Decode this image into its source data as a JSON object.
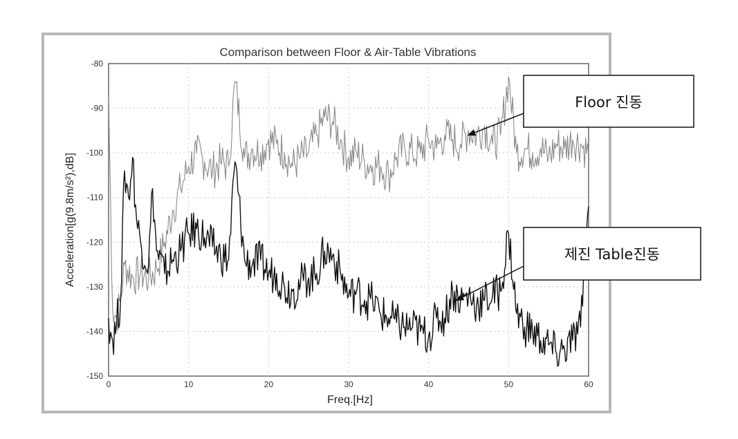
{
  "chart_data": {
    "type": "line",
    "title": "Comparison between Floor & Air-Table Vibrations",
    "xlabel": "Freq.[Hz]",
    "ylabel": "Acceleration[g(9.8m/s²),dB]",
    "xlim": [
      0,
      60
    ],
    "ylim": [
      -150,
      -80
    ],
    "x_ticks": [
      "0",
      "10",
      "20",
      "30",
      "40",
      "50",
      "60"
    ],
    "y_ticks": [
      "-150",
      "-140",
      "-130",
      "-120",
      "-110",
      "-100",
      "-90",
      "-80"
    ],
    "grid": true,
    "series": [
      {
        "name": "Floor 진동",
        "color": "#8a8a8a",
        "x": [
          0,
          0.5,
          1,
          1.5,
          2,
          3,
          4,
          5,
          6,
          7,
          8,
          9,
          10,
          11,
          12,
          13,
          14,
          15,
          15.8,
          17,
          18,
          19,
          20,
          21,
          22,
          23,
          24,
          25,
          26,
          27,
          28,
          29,
          30,
          31,
          32,
          33,
          34,
          35,
          36,
          37,
          38,
          39,
          40,
          41,
          42,
          43,
          44,
          45,
          46,
          47,
          48,
          49,
          50,
          51,
          52,
          53,
          54,
          55,
          56,
          57,
          58,
          59,
          60
        ],
        "values": [
          -87,
          -135,
          -137,
          -133,
          -125,
          -128,
          -127,
          -128,
          -126,
          -120,
          -113,
          -108,
          -103,
          -100,
          -102,
          -104,
          -102,
          -103,
          -84,
          -101,
          -99,
          -100,
          -97,
          -98,
          -100,
          -103,
          -101,
          -100,
          -96,
          -92,
          -93,
          -97,
          -101,
          -100,
          -102,
          -103,
          -103,
          -105,
          -101,
          -99,
          -100,
          -100,
          -97,
          -99,
          -96,
          -97,
          -98,
          -95,
          -96,
          -94,
          -98,
          -96,
          -83,
          -100,
          -99,
          -100,
          -99,
          -101,
          -98,
          -99,
          -97,
          -98,
          -100
        ]
      },
      {
        "name": "제진 Table진동",
        "color": "#111111",
        "x": [
          0,
          0.5,
          1,
          1.5,
          2,
          2.5,
          3,
          3.5,
          4,
          5,
          5.5,
          6,
          7,
          8,
          9,
          10,
          11,
          12,
          13,
          14,
          15,
          15.8,
          17,
          18,
          19,
          20,
          21,
          22,
          23,
          24,
          25,
          26,
          27,
          28,
          29,
          30,
          31,
          32,
          33,
          34,
          35,
          36,
          37,
          38,
          39,
          40,
          41,
          42,
          43,
          44,
          45,
          46,
          47,
          48,
          49,
          50,
          51,
          52,
          53,
          54,
          55,
          56,
          57,
          58,
          59,
          60
        ],
        "values": [
          -137,
          -142,
          -138,
          -133,
          -104,
          -110,
          -101,
          -115,
          -120,
          -125,
          -108,
          -122,
          -127,
          -124,
          -122,
          -118,
          -117,
          -119,
          -121,
          -123,
          -124,
          -102,
          -124,
          -125,
          -124,
          -127,
          -127,
          -130,
          -131,
          -129,
          -128,
          -127,
          -122,
          -123,
          -127,
          -132,
          -131,
          -133,
          -133,
          -136,
          -137,
          -138,
          -139,
          -139,
          -140,
          -141,
          -137,
          -137,
          -131,
          -133,
          -132,
          -134,
          -133,
          -132,
          -131,
          -118,
          -136,
          -139,
          -140,
          -142,
          -143,
          -145,
          -144,
          -142,
          -139,
          -112
        ]
      }
    ],
    "annotations": [
      {
        "text": "Floor  진동",
        "target_x": 45,
        "target_y": -96
      },
      {
        "text": "제진  Table진동",
        "target_x": 43.5,
        "target_y": -133
      }
    ]
  }
}
